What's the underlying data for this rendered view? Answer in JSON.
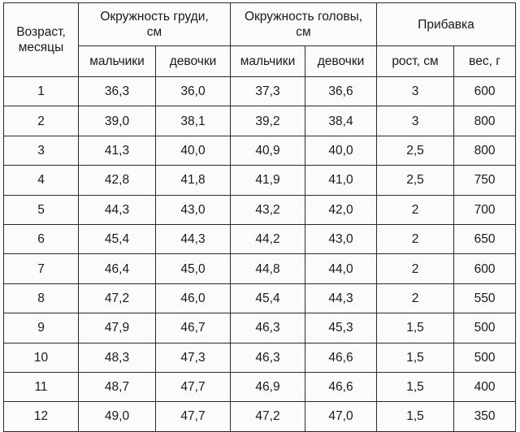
{
  "table": {
    "headers": {
      "age": [
        "Возраст,",
        "месяцы"
      ],
      "chest": [
        "Окружность груди,",
        "см"
      ],
      "head": [
        "Окружность головы,",
        "см"
      ],
      "gain": "Прибавка",
      "boys": "мальчики",
      "girls": "девочки",
      "height_gain": "рост, см",
      "weight_gain": "вес, г"
    },
    "rows": [
      {
        "age": "1",
        "chest_boys": "36,3",
        "chest_girls": "36,0",
        "head_boys": "37,3",
        "head_girls": "36,6",
        "height": "3",
        "weight": "600"
      },
      {
        "age": "2",
        "chest_boys": "39,0",
        "chest_girls": "38,1",
        "head_boys": "39,2",
        "head_girls": "38,4",
        "height": "3",
        "weight": "800"
      },
      {
        "age": "3",
        "chest_boys": "41,3",
        "chest_girls": "40,0",
        "head_boys": "40,9",
        "head_girls": "40,0",
        "height": "2,5",
        "weight": "800"
      },
      {
        "age": "4",
        "chest_boys": "42,8",
        "chest_girls": "41,8",
        "head_boys": "41,9",
        "head_girls": "41,0",
        "height": "2,5",
        "weight": "750"
      },
      {
        "age": "5",
        "chest_boys": "44,3",
        "chest_girls": "43,0",
        "head_boys": "43,2",
        "head_girls": "42,0",
        "height": "2",
        "weight": "700"
      },
      {
        "age": "6",
        "chest_boys": "45,4",
        "chest_girls": "44,3",
        "head_boys": "44,2",
        "head_girls": "43,0",
        "height": "2",
        "weight": "650"
      },
      {
        "age": "7",
        "chest_boys": "46,4",
        "chest_girls": "45,0",
        "head_boys": "44,8",
        "head_girls": "44,0",
        "height": "2",
        "weight": "600"
      },
      {
        "age": "8",
        "chest_boys": "47,2",
        "chest_girls": "46,0",
        "head_boys": "45,4",
        "head_girls": "44,3",
        "height": "2",
        "weight": "550"
      },
      {
        "age": "9",
        "chest_boys": "47,9",
        "chest_girls": "46,7",
        "head_boys": "46,3",
        "head_girls": "45,3",
        "height": "1,5",
        "weight": "500"
      },
      {
        "age": "10",
        "chest_boys": "48,3",
        "chest_girls": "47,3",
        "head_boys": "46,3",
        "head_girls": "46,6",
        "height": "1,5",
        "weight": "500"
      },
      {
        "age": "11",
        "chest_boys": "48,7",
        "chest_girls": "47,7",
        "head_boys": "46,9",
        "head_girls": "46,6",
        "height": "1,5",
        "weight": "400"
      },
      {
        "age": "12",
        "chest_boys": "49,0",
        "chest_girls": "47,7",
        "head_boys": "47,2",
        "head_girls": "47,0",
        "height": "1,5",
        "weight": "350"
      }
    ]
  }
}
